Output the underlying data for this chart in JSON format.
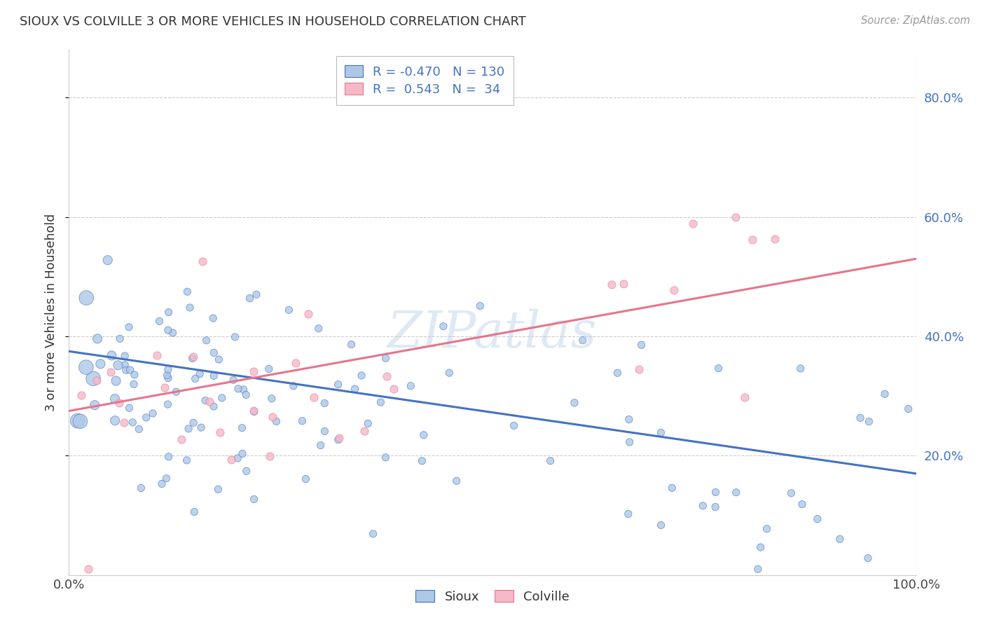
{
  "title": "SIOUX VS COLVILLE 3 OR MORE VEHICLES IN HOUSEHOLD CORRELATION CHART",
  "source": "Source: ZipAtlas.com",
  "ylabel": "3 or more Vehicles in Household",
  "legend_sioux": "Sioux",
  "legend_colville": "Colville",
  "R_sioux": "-0.470",
  "N_sioux": "130",
  "R_colville": "0.543",
  "N_colville": "34",
  "sioux_color": "#adc8e6",
  "colville_color": "#f4b8c8",
  "sioux_line_color": "#4472c4",
  "colville_line_color": "#e8748a",
  "watermark": "ZIPatlas",
  "background_color": "#ffffff",
  "sioux_slope": -0.205,
  "sioux_intercept": 0.375,
  "colville_slope": 0.255,
  "colville_intercept": 0.275,
  "ylim_max": 0.88,
  "ytick_vals": [
    0.2,
    0.4,
    0.6,
    0.8
  ],
  "ytick_labels": [
    "20.0%",
    "40.0%",
    "60.0%",
    "80.0%"
  ]
}
